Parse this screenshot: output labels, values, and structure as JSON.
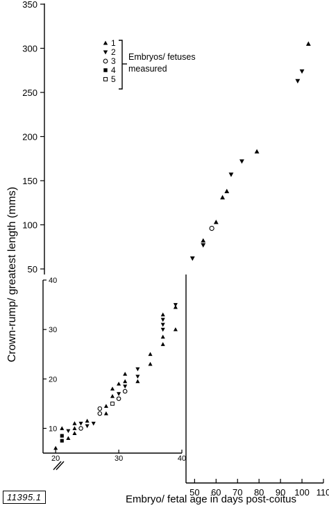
{
  "figure_id": "11395.1",
  "chart_data": [
    {
      "type": "scatter",
      "title": "",
      "xlabel": "Embryo/ fetal age in days post-coitus",
      "ylabel": "Crown-rump/ greatest length (mms)",
      "xlim": [
        46,
        110
      ],
      "ylim": [
        50,
        350
      ],
      "x_ticks": [
        50,
        60,
        70,
        80,
        90,
        100,
        110
      ],
      "y_ticks": [
        50,
        100,
        150,
        200,
        250,
        300,
        350
      ],
      "legend": {
        "position": "top-left",
        "title_lines": [
          "Embryos/ fetuses",
          "measured"
        ],
        "entries": [
          {
            "label": "1",
            "symbol": "triangle"
          },
          {
            "label": "2",
            "symbol": "inverted-triangle"
          },
          {
            "label": "3",
            "symbol": "open-circle"
          },
          {
            "label": "4",
            "symbol": "square"
          },
          {
            "label": "5",
            "symbol": "open-square"
          }
        ]
      },
      "points": [
        {
          "x": 49,
          "y": 62,
          "symbol": "inverted-triangle"
        },
        {
          "x": 54,
          "y": 82,
          "symbol": "triangle"
        },
        {
          "x": 54,
          "y": 77,
          "symbol": "inverted-triangle"
        },
        {
          "x": 58,
          "y": 96,
          "symbol": "open-circle"
        },
        {
          "x": 60,
          "y": 103,
          "symbol": "triangle"
        },
        {
          "x": 63,
          "y": 131,
          "symbol": "triangle"
        },
        {
          "x": 65,
          "y": 138,
          "symbol": "triangle"
        },
        {
          "x": 67,
          "y": 157,
          "symbol": "inverted-triangle"
        },
        {
          "x": 72,
          "y": 172,
          "symbol": "inverted-triangle"
        },
        {
          "x": 79,
          "y": 183,
          "symbol": "triangle"
        },
        {
          "x": 98,
          "y": 263,
          "symbol": "inverted-triangle"
        },
        {
          "x": 100,
          "y": 274,
          "symbol": "inverted-triangle"
        },
        {
          "x": 103,
          "y": 305,
          "symbol": "triangle"
        }
      ]
    },
    {
      "type": "scatter",
      "title": "",
      "xlabel": "",
      "ylabel": "",
      "xlim": [
        18,
        40
      ],
      "ylim": [
        5,
        40
      ],
      "x_ticks": [
        20,
        30,
        40
      ],
      "y_ticks": [
        10,
        20,
        30,
        40
      ],
      "points": [
        {
          "x": 20,
          "y": 6,
          "symbol": "triangle"
        },
        {
          "x": 21,
          "y": 7.5,
          "symbol": "square"
        },
        {
          "x": 21,
          "y": 8.5,
          "symbol": "square"
        },
        {
          "x": 21,
          "y": 10,
          "symbol": "triangle"
        },
        {
          "x": 22,
          "y": 8,
          "symbol": "triangle"
        },
        {
          "x": 22,
          "y": 9.5,
          "symbol": "inverted-triangle"
        },
        {
          "x": 23,
          "y": 9,
          "symbol": "triangle"
        },
        {
          "x": 23,
          "y": 10,
          "symbol": "triangle"
        },
        {
          "x": 23,
          "y": 11,
          "symbol": "triangle"
        },
        {
          "x": 24,
          "y": 10,
          "symbol": "open-circle"
        },
        {
          "x": 24,
          "y": 11,
          "symbol": "inverted-triangle"
        },
        {
          "x": 25,
          "y": 10.5,
          "symbol": "inverted-triangle"
        },
        {
          "x": 25,
          "y": 11.5,
          "symbol": "triangle"
        },
        {
          "x": 26,
          "y": 11,
          "symbol": "inverted-triangle"
        },
        {
          "x": 27,
          "y": 14,
          "symbol": "open-circle"
        },
        {
          "x": 27,
          "y": 13,
          "symbol": "open-circle"
        },
        {
          "x": 28,
          "y": 13,
          "symbol": "triangle"
        },
        {
          "x": 28,
          "y": 14.5,
          "symbol": "triangle"
        },
        {
          "x": 29,
          "y": 15,
          "symbol": "open-square"
        },
        {
          "x": 29,
          "y": 16.5,
          "symbol": "triangle"
        },
        {
          "x": 29,
          "y": 18,
          "symbol": "triangle"
        },
        {
          "x": 30,
          "y": 16,
          "symbol": "open-circle"
        },
        {
          "x": 30,
          "y": 17,
          "symbol": "inverted-triangle"
        },
        {
          "x": 30,
          "y": 19,
          "symbol": "triangle"
        },
        {
          "x": 31,
          "y": 17.5,
          "symbol": "open-circle"
        },
        {
          "x": 31,
          "y": 18.5,
          "symbol": "inverted-triangle"
        },
        {
          "x": 31,
          "y": 19.5,
          "symbol": "triangle"
        },
        {
          "x": 31,
          "y": 21,
          "symbol": "triangle"
        },
        {
          "x": 33,
          "y": 19.5,
          "symbol": "triangle"
        },
        {
          "x": 33,
          "y": 20.5,
          "symbol": "inverted-triangle"
        },
        {
          "x": 33,
          "y": 22,
          "symbol": "inverted-triangle"
        },
        {
          "x": 35,
          "y": 23,
          "symbol": "triangle"
        },
        {
          "x": 35,
          "y": 25,
          "symbol": "triangle"
        },
        {
          "x": 37,
          "y": 27,
          "symbol": "triangle"
        },
        {
          "x": 37,
          "y": 28.5,
          "symbol": "triangle"
        },
        {
          "x": 37,
          "y": 30,
          "symbol": "inverted-triangle"
        },
        {
          "x": 37,
          "y": 31,
          "symbol": "inverted-triangle"
        },
        {
          "x": 37,
          "y": 32,
          "symbol": "inverted-triangle"
        },
        {
          "x": 37,
          "y": 33,
          "symbol": "triangle"
        },
        {
          "x": 39,
          "y": 30,
          "symbol": "triangle"
        },
        {
          "x": 39,
          "y": 34.5,
          "symbol": "triangle"
        },
        {
          "x": 39,
          "y": 35,
          "symbol": "inverted-triangle"
        }
      ]
    }
  ]
}
